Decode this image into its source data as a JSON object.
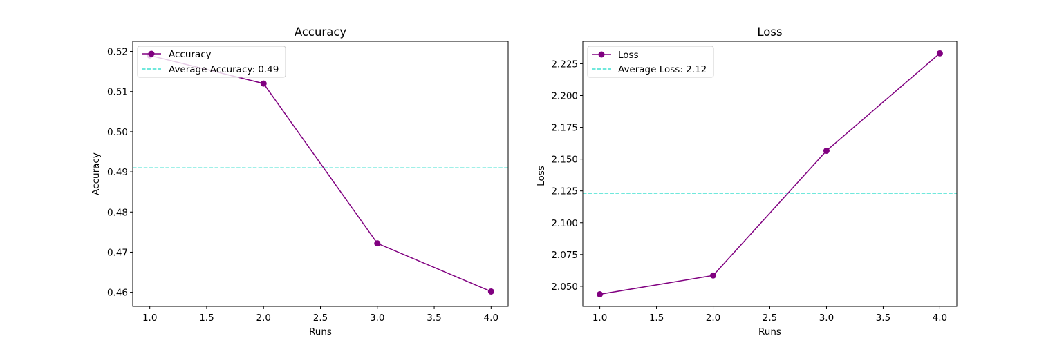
{
  "chart_data": [
    {
      "type": "line",
      "title": "Accuracy",
      "xlabel": "Runs",
      "ylabel": "Accuracy",
      "x": [
        1,
        2,
        3,
        4
      ],
      "series": [
        {
          "name": "Accuracy",
          "values": [
            0.519,
            0.512,
            0.4722,
            0.4602
          ],
          "color": "#800080",
          "marker": "circle"
        }
      ],
      "reference_lines": [
        {
          "name": "Average Accuracy: 0.49",
          "value": 0.491,
          "color": "#40e0d0",
          "style": "dashed"
        }
      ],
      "xlim": [
        0.85,
        4.15
      ],
      "ylim": [
        0.4565,
        0.5225
      ],
      "xticks": [
        1.0,
        1.5,
        2.0,
        2.5,
        3.0,
        3.5,
        4.0
      ],
      "xtick_labels": [
        "1.0",
        "1.5",
        "2.0",
        "2.5",
        "3.0",
        "3.5",
        "4.0"
      ],
      "yticks": [
        0.46,
        0.47,
        0.48,
        0.49,
        0.5,
        0.51,
        0.52
      ],
      "ytick_labels": [
        "0.46",
        "0.47",
        "0.48",
        "0.49",
        "0.50",
        "0.51",
        "0.52"
      ],
      "legend_position": "top-left",
      "grid": false
    },
    {
      "type": "line",
      "title": "Loss",
      "xlabel": "Runs",
      "ylabel": "Loss",
      "x": [
        1,
        2,
        3,
        4
      ],
      "series": [
        {
          "name": "Loss",
          "values": [
            2.0437,
            2.0585,
            2.1566,
            2.2332
          ],
          "color": "#800080",
          "marker": "circle"
        }
      ],
      "reference_lines": [
        {
          "name": "Average Loss: 2.12",
          "value": 2.1232,
          "color": "#40e0d0",
          "style": "dashed"
        }
      ],
      "xlim": [
        0.85,
        4.15
      ],
      "ylim": [
        2.0342,
        2.2426
      ],
      "xticks": [
        1.0,
        1.5,
        2.0,
        2.5,
        3.0,
        3.5,
        4.0
      ],
      "xtick_labels": [
        "1.0",
        "1.5",
        "2.0",
        "2.5",
        "3.0",
        "3.5",
        "4.0"
      ],
      "yticks": [
        2.05,
        2.075,
        2.1,
        2.125,
        2.15,
        2.175,
        2.2,
        2.225
      ],
      "ytick_labels": [
        "2.050",
        "2.075",
        "2.100",
        "2.125",
        "2.150",
        "2.175",
        "2.200",
        "2.225"
      ],
      "legend_position": "top-left",
      "grid": false
    }
  ]
}
